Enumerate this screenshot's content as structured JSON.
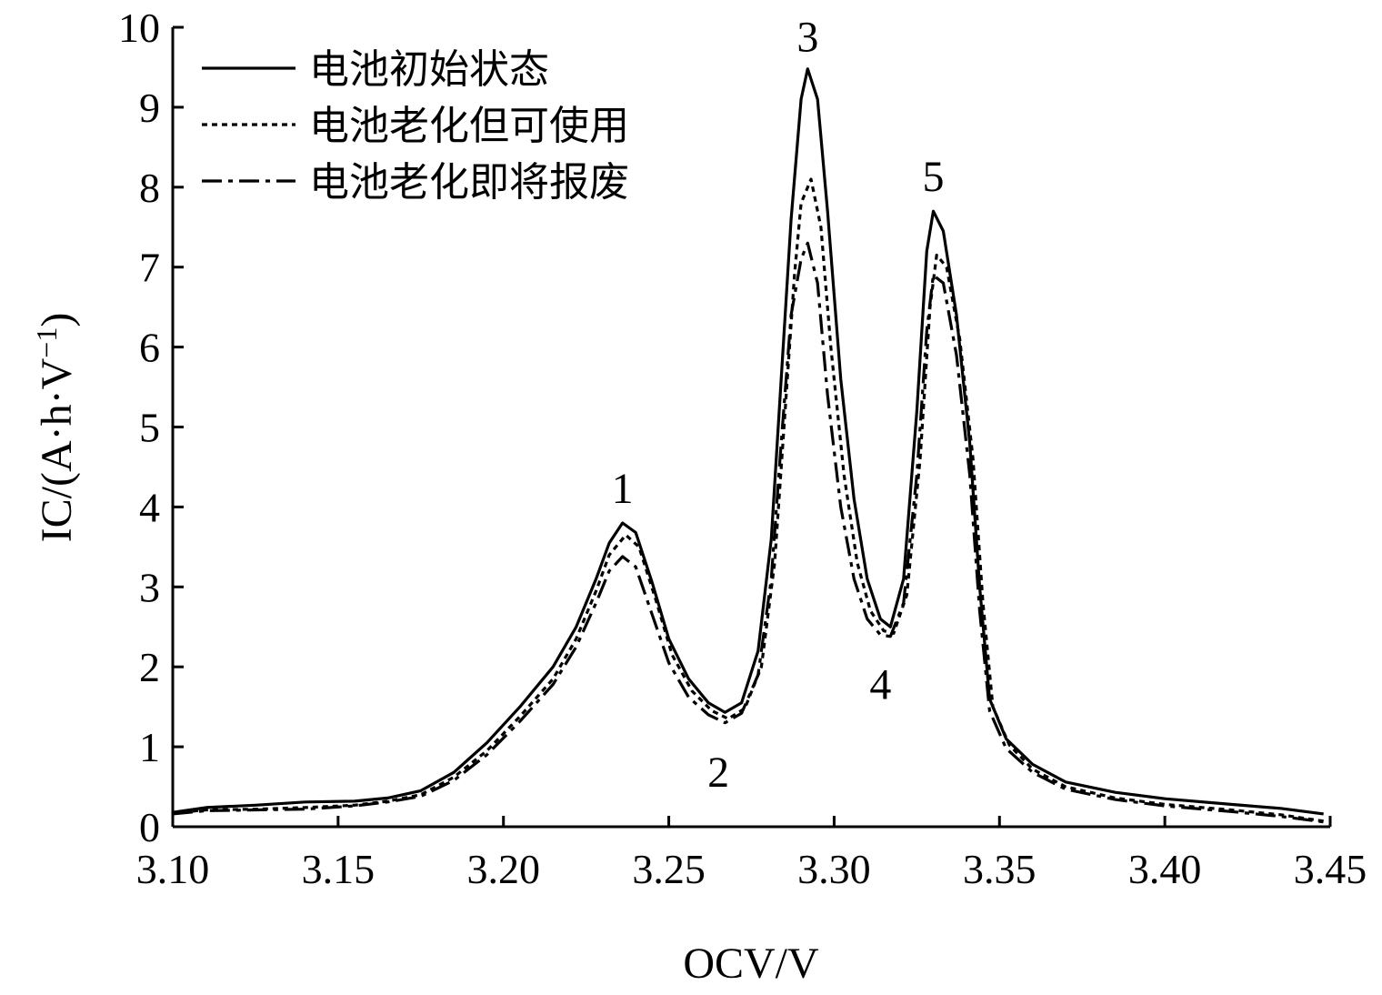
{
  "chart_data": {
    "type": "line",
    "title": "",
    "xlabel": "OCV/V",
    "ylabel_main": "IC/(A·h·V",
    "ylabel_sup": "−1",
    "ylabel_close": ")",
    "xlim": [
      3.1,
      3.45
    ],
    "ylim": [
      0,
      10
    ],
    "xticks": [
      "3.10",
      "3.15",
      "3.20",
      "3.25",
      "3.30",
      "3.35",
      "3.40",
      "3.45"
    ],
    "yticks": [
      "0",
      "1",
      "2",
      "3",
      "4",
      "5",
      "6",
      "7",
      "8",
      "9",
      "10"
    ],
    "grid": false,
    "legend_position": "top-left",
    "series": [
      {
        "name": "电池初始状态",
        "style": "solid",
        "points": [
          [
            3.1,
            0.18
          ],
          [
            3.11,
            0.24
          ],
          [
            3.125,
            0.27
          ],
          [
            3.14,
            0.31
          ],
          [
            3.155,
            0.32
          ],
          [
            3.165,
            0.36
          ],
          [
            3.175,
            0.45
          ],
          [
            3.185,
            0.68
          ],
          [
            3.195,
            1.05
          ],
          [
            3.205,
            1.5
          ],
          [
            3.215,
            2.0
          ],
          [
            3.222,
            2.5
          ],
          [
            3.228,
            3.1
          ],
          [
            3.232,
            3.55
          ],
          [
            3.236,
            3.8
          ],
          [
            3.24,
            3.68
          ],
          [
            3.245,
            3.05
          ],
          [
            3.25,
            2.35
          ],
          [
            3.256,
            1.85
          ],
          [
            3.262,
            1.55
          ],
          [
            3.267,
            1.43
          ],
          [
            3.272,
            1.55
          ],
          [
            3.277,
            2.2
          ],
          [
            3.281,
            3.6
          ],
          [
            3.284,
            5.6
          ],
          [
            3.287,
            7.6
          ],
          [
            3.29,
            9.1
          ],
          [
            3.292,
            9.48
          ],
          [
            3.295,
            9.1
          ],
          [
            3.298,
            7.7
          ],
          [
            3.302,
            5.6
          ],
          [
            3.306,
            4.1
          ],
          [
            3.31,
            3.1
          ],
          [
            3.314,
            2.6
          ],
          [
            3.317,
            2.5
          ],
          [
            3.321,
            3.1
          ],
          [
            3.325,
            5.2
          ],
          [
            3.328,
            7.2
          ],
          [
            3.33,
            7.7
          ],
          [
            3.333,
            7.45
          ],
          [
            3.337,
            6.4
          ],
          [
            3.341,
            4.8
          ],
          [
            3.344,
            3.0
          ],
          [
            3.347,
            1.6
          ],
          [
            3.352,
            1.1
          ],
          [
            3.36,
            0.78
          ],
          [
            3.37,
            0.56
          ],
          [
            3.385,
            0.43
          ],
          [
            3.4,
            0.35
          ],
          [
            3.42,
            0.28
          ],
          [
            3.435,
            0.23
          ],
          [
            3.448,
            0.16
          ]
        ]
      },
      {
        "name": "电池老化但可使用",
        "style": "dotted",
        "points": [
          [
            3.1,
            0.17
          ],
          [
            3.11,
            0.21
          ],
          [
            3.125,
            0.22
          ],
          [
            3.14,
            0.24
          ],
          [
            3.155,
            0.27
          ],
          [
            3.165,
            0.32
          ],
          [
            3.175,
            0.4
          ],
          [
            3.185,
            0.62
          ],
          [
            3.195,
            0.95
          ],
          [
            3.205,
            1.38
          ],
          [
            3.215,
            1.85
          ],
          [
            3.222,
            2.35
          ],
          [
            3.228,
            2.95
          ],
          [
            3.232,
            3.4
          ],
          [
            3.237,
            3.65
          ],
          [
            3.241,
            3.5
          ],
          [
            3.246,
            2.85
          ],
          [
            3.251,
            2.15
          ],
          [
            3.257,
            1.7
          ],
          [
            3.263,
            1.45
          ],
          [
            3.268,
            1.35
          ],
          [
            3.273,
            1.48
          ],
          [
            3.278,
            2.0
          ],
          [
            3.282,
            3.3
          ],
          [
            3.285,
            5.1
          ],
          [
            3.288,
            6.9
          ],
          [
            3.29,
            7.8
          ],
          [
            3.293,
            8.1
          ],
          [
            3.296,
            7.5
          ],
          [
            3.299,
            6.0
          ],
          [
            3.303,
            4.4
          ],
          [
            3.307,
            3.3
          ],
          [
            3.311,
            2.7
          ],
          [
            3.315,
            2.45
          ],
          [
            3.318,
            2.42
          ],
          [
            3.322,
            2.9
          ],
          [
            3.326,
            4.6
          ],
          [
            3.329,
            6.5
          ],
          [
            3.331,
            7.15
          ],
          [
            3.334,
            7.0
          ],
          [
            3.338,
            6.1
          ],
          [
            3.342,
            4.6
          ],
          [
            3.345,
            2.8
          ],
          [
            3.348,
            1.5
          ],
          [
            3.353,
            1.02
          ],
          [
            3.36,
            0.72
          ],
          [
            3.37,
            0.5
          ],
          [
            3.385,
            0.36
          ],
          [
            3.4,
            0.28
          ],
          [
            3.42,
            0.21
          ],
          [
            3.435,
            0.15
          ],
          [
            3.448,
            0.07
          ]
        ]
      },
      {
        "name": "电池老化即将报废",
        "style": "dashdot",
        "points": [
          [
            3.1,
            0.16
          ],
          [
            3.11,
            0.2
          ],
          [
            3.125,
            0.21
          ],
          [
            3.14,
            0.22
          ],
          [
            3.155,
            0.26
          ],
          [
            3.165,
            0.31
          ],
          [
            3.175,
            0.38
          ],
          [
            3.185,
            0.58
          ],
          [
            3.195,
            0.9
          ],
          [
            3.205,
            1.32
          ],
          [
            3.215,
            1.78
          ],
          [
            3.222,
            2.25
          ],
          [
            3.228,
            2.8
          ],
          [
            3.232,
            3.2
          ],
          [
            3.236,
            3.38
          ],
          [
            3.24,
            3.25
          ],
          [
            3.245,
            2.65
          ],
          [
            3.25,
            2.05
          ],
          [
            3.256,
            1.62
          ],
          [
            3.262,
            1.4
          ],
          [
            3.267,
            1.3
          ],
          [
            3.272,
            1.42
          ],
          [
            3.277,
            1.9
          ],
          [
            3.281,
            3.1
          ],
          [
            3.284,
            4.8
          ],
          [
            3.287,
            6.4
          ],
          [
            3.29,
            7.1
          ],
          [
            3.292,
            7.3
          ],
          [
            3.295,
            6.8
          ],
          [
            3.298,
            5.4
          ],
          [
            3.302,
            4.0
          ],
          [
            3.306,
            3.1
          ],
          [
            3.31,
            2.6
          ],
          [
            3.314,
            2.4
          ],
          [
            3.317,
            2.38
          ],
          [
            3.321,
            2.8
          ],
          [
            3.325,
            4.4
          ],
          [
            3.328,
            6.2
          ],
          [
            3.33,
            6.9
          ],
          [
            3.333,
            6.8
          ],
          [
            3.337,
            5.9
          ],
          [
            3.341,
            4.4
          ],
          [
            3.344,
            2.7
          ],
          [
            3.347,
            1.45
          ],
          [
            3.352,
            0.98
          ],
          [
            3.36,
            0.68
          ],
          [
            3.37,
            0.47
          ],
          [
            3.385,
            0.34
          ],
          [
            3.4,
            0.26
          ],
          [
            3.42,
            0.19
          ],
          [
            3.435,
            0.13
          ],
          [
            3.448,
            0.06
          ]
        ]
      }
    ],
    "annotations": [
      {
        "text": "1",
        "x": 3.236,
        "y": 4.05
      },
      {
        "text": "2",
        "x": 3.265,
        "y": 0.5
      },
      {
        "text": "3",
        "x": 3.292,
        "y": 9.7
      },
      {
        "text": "4",
        "x": 3.314,
        "y": 1.6
      },
      {
        "text": "5",
        "x": 3.33,
        "y": 7.95
      }
    ]
  }
}
